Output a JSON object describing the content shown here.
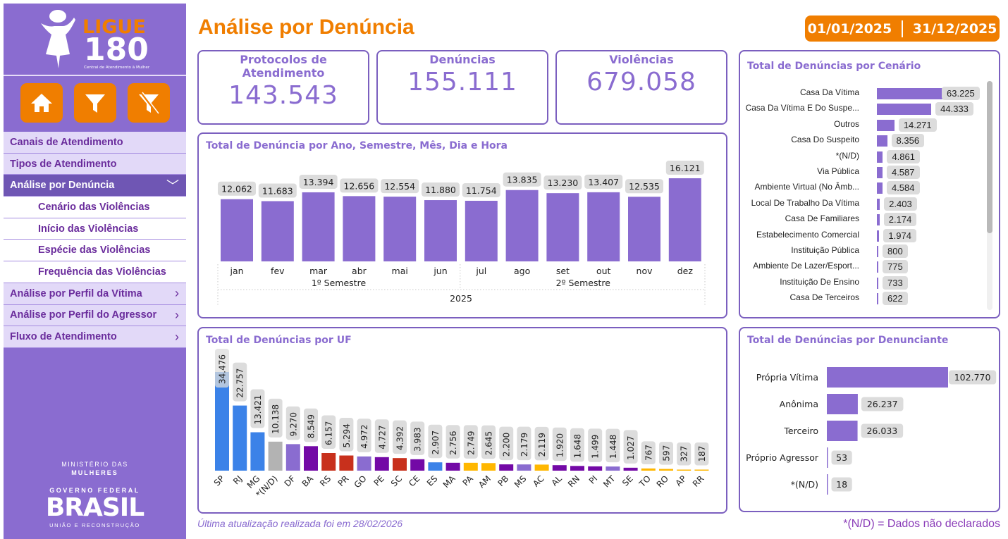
{
  "sidebar": {
    "logo": {
      "brand_top": "LIGUE",
      "brand_number": "180",
      "tagline": "Central de Atendimento à Mulher"
    },
    "buttons": [
      {
        "icon": "home-icon",
        "label": "Início"
      },
      {
        "icon": "filter-icon",
        "label": "Filtros"
      },
      {
        "icon": "clear-filter-icon",
        "label": "Limpar filtros"
      }
    ],
    "menu": [
      {
        "label": "Canais de Atendimento",
        "type": "item"
      },
      {
        "label": "Tipos de Atendimento",
        "type": "item"
      },
      {
        "label": "Análise por Denúncia",
        "type": "active",
        "chevron": "﹀"
      },
      {
        "label": "Cenário das Violências",
        "type": "sub"
      },
      {
        "label": "Início das Violências",
        "type": "sub"
      },
      {
        "label": "Espécie das Violências",
        "type": "sub"
      },
      {
        "label": "Frequência das Violências",
        "type": "sub"
      },
      {
        "label": "Análise por Perfil da Vítima",
        "type": "item",
        "chevron": "›"
      },
      {
        "label": "Análise por Perfil do Agressor",
        "type": "item",
        "chevron": "›"
      },
      {
        "label": "Fluxo de Atendimento",
        "type": "item",
        "chevron": "›"
      }
    ],
    "gov": {
      "ministry_line1": "MINISTÉRIO DAS",
      "ministry_line2": "MULHERES",
      "gov_federal": "GOVERNO FEDERAL",
      "brasil": "BRASIL",
      "motto": "UNIÃO E RECONSTRUÇÃO"
    }
  },
  "header": {
    "title": "Análise por Denúncia",
    "date_start": "01/01/2025",
    "date_end": "31/12/2025"
  },
  "kpis": [
    {
      "label": "Protocolos de Atendimento",
      "value": "143.543"
    },
    {
      "label": "Denúncias",
      "value": "155.111"
    },
    {
      "label": "Violências",
      "value": "679.058"
    }
  ],
  "footer": {
    "update_note": "Última atualização realizada foi em 28/02/2026",
    "nd_note": "*(N/D) = Dados não declarados"
  },
  "colors": {
    "accent_orange": "#f07e00",
    "primary_purple": "#8a6cd0",
    "dark_purple": "#6f56b4",
    "bar_blue": "#3b82e8",
    "bar_gray": "#b3b3b3",
    "bar_deep_purple": "#7309a6",
    "bar_red": "#c8301c",
    "bar_yellow": "#ffb700",
    "label_bg": "#dcdcdc"
  },
  "chart_data": [
    {
      "id": "monthly",
      "type": "bar",
      "title": "Total de Denúncia por Ano, Semestre, Mês, Dia e Hora",
      "categories": [
        "jan",
        "fev",
        "mar",
        "abr",
        "mai",
        "jun",
        "jul",
        "ago",
        "set",
        "out",
        "nov",
        "dez"
      ],
      "values": [
        12062,
        11683,
        13394,
        12656,
        12554,
        11880,
        11754,
        13835,
        13230,
        13407,
        12535,
        16121
      ],
      "labels": [
        "12.062",
        "11.683",
        "13.394",
        "12.656",
        "12.554",
        "11.880",
        "11.754",
        "13.835",
        "13.230",
        "13.407",
        "12.535",
        "16.121"
      ],
      "groups": [
        {
          "label": "1º Semestre",
          "from": 0,
          "to": 5
        },
        {
          "label": "2º Semestre",
          "from": 6,
          "to": 11
        }
      ],
      "year_label": "2025",
      "xlabel": "",
      "ylabel": "",
      "grid": false
    },
    {
      "id": "scenario",
      "type": "bar",
      "orientation": "horizontal",
      "title": "Total de Denúncias por Cenário",
      "categories": [
        "Casa Da Vítima",
        "Casa Da Vítima E Do Suspe...",
        "Outros",
        "Casa Do Suspeito",
        "*(N/D)",
        "Via Pública",
        "Ambiente Virtual (No Âmb...",
        "Local De Trabalho Da Vítima",
        "Casa De Familiares",
        "Estabelecimento Comercial",
        "Instituição Pública",
        "Ambiente De Lazer/Esport...",
        "Instituição De Ensino",
        "Casa De Terceiros"
      ],
      "values": [
        63225,
        44333,
        14271,
        8356,
        4861,
        4587,
        4584,
        2403,
        2174,
        1974,
        800,
        775,
        733,
        622
      ],
      "labels": [
        "63.225",
        "44.333",
        "14.271",
        "8.356",
        "4.861",
        "4.587",
        "4.584",
        "2.403",
        "2.174",
        "1.974",
        "800",
        "775",
        "733",
        "622"
      ],
      "scrollable": true
    },
    {
      "id": "uf",
      "type": "bar",
      "title": "Total de Denúncias por UF",
      "categories": [
        "SP",
        "RJ",
        "MG",
        "*(N/D)",
        "DF",
        "BA",
        "RS",
        "PR",
        "GO",
        "PE",
        "SC",
        "CE",
        "ES",
        "MA",
        "PA",
        "AM",
        "PB",
        "MS",
        "AC",
        "AL",
        "RN",
        "PI",
        "MT",
        "SE",
        "TO",
        "RO",
        "AP",
        "RR"
      ],
      "values": [
        34476,
        22757,
        13421,
        10138,
        9270,
        8549,
        6157,
        5294,
        4972,
        4727,
        4392,
        3983,
        2907,
        2756,
        2749,
        2645,
        2200,
        2179,
        2119,
        1920,
        1648,
        1499,
        1448,
        1027,
        767,
        597,
        327,
        187
      ],
      "labels": [
        "34.476",
        "22.757",
        "13.421",
        "10.138",
        "9.270",
        "8.549",
        "6.157",
        "5.294",
        "4.972",
        "4.727",
        "4.392",
        "3.983",
        "2.907",
        "2.756",
        "2.749",
        "2.645",
        "2.200",
        "2.179",
        "2.119",
        "1.920",
        "1.648",
        "1.499",
        "1.448",
        "1.027",
        "767",
        "597",
        "327",
        "187"
      ],
      "colors": [
        "#3b82e8",
        "#3b82e8",
        "#3b82e8",
        "#b3b3b3",
        "#8a6cd0",
        "#7309a6",
        "#c8301c",
        "#c8301c",
        "#8a6cd0",
        "#7309a6",
        "#c8301c",
        "#7309a6",
        "#3b82e8",
        "#7309a6",
        "#ffb700",
        "#ffb700",
        "#7309a6",
        "#8a6cd0",
        "#ffb700",
        "#7309a6",
        "#7309a6",
        "#7309a6",
        "#8a6cd0",
        "#7309a6",
        "#ffb700",
        "#ffb700",
        "#ffb700",
        "#ffb700"
      ]
    },
    {
      "id": "reporter",
      "type": "bar",
      "orientation": "horizontal",
      "title": "Total de Denúncias por Denunciante",
      "categories": [
        "Própria Vítima",
        "Anônima",
        "Terceiro",
        "Próprio Agressor",
        "*(N/D)"
      ],
      "values": [
        102770,
        26237,
        26033,
        53,
        18
      ],
      "labels": [
        "102.770",
        "26.237",
        "26.033",
        "53",
        "18"
      ]
    }
  ]
}
